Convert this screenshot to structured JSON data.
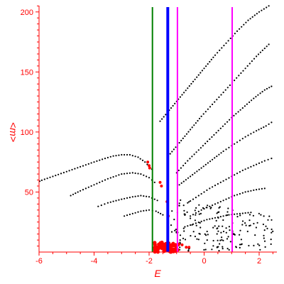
{
  "chart_data": {
    "type": "scatter",
    "title": "",
    "xlabel": "E",
    "ylabel": "<m>",
    "xlim": [
      -6.0,
      2.6
    ],
    "ylim": [
      0,
      205
    ],
    "x_ticks": [
      -6,
      -4,
      -2,
      0,
      2
    ],
    "x_tick_labels": [
      "-6",
      "-4",
      "-2",
      "0",
      "2"
    ],
    "y_ticks": [
      50,
      100,
      150,
      200
    ],
    "y_tick_labels": [
      "50",
      "100",
      "150",
      "200"
    ],
    "grid": false,
    "colors": {
      "axes": "#ff0000",
      "points": "#000000",
      "highlight": "#ff0000",
      "line_green": "#008000",
      "line_blue": "#0000ff",
      "line_magenta": "#ff00ff"
    },
    "vertical_lines": [
      {
        "x": -1.88,
        "color": "#008000",
        "width": 2
      },
      {
        "x": -1.32,
        "color": "#0000ff",
        "width": 4
      },
      {
        "x": -0.97,
        "color": "#ff00ff",
        "width": 2
      },
      {
        "x": 1.02,
        "color": "#ff00ff",
        "width": 2
      }
    ],
    "series": [
      {
        "points": [
          [
            -6.0,
            59
          ],
          [
            -5.5,
            63
          ],
          [
            -5.0,
            67
          ],
          [
            -4.5,
            71
          ],
          [
            -4.0,
            75
          ],
          [
            -3.6,
            78
          ],
          [
            -3.3,
            80
          ],
          [
            -3.0,
            81
          ],
          [
            -2.7,
            81
          ],
          [
            -2.4,
            79
          ],
          [
            -2.15,
            75
          ],
          [
            -1.9,
            69
          ]
        ]
      },
      {
        "points": [
          [
            -4.85,
            47
          ],
          [
            -4.5,
            51
          ],
          [
            -4.0,
            56
          ],
          [
            -3.5,
            61
          ],
          [
            -3.0,
            65
          ],
          [
            -2.6,
            66
          ],
          [
            -2.3,
            65
          ],
          [
            -2.0,
            62
          ],
          [
            -1.8,
            58
          ]
        ]
      },
      {
        "points": [
          [
            -3.85,
            38
          ],
          [
            -3.5,
            41
          ],
          [
            -3.0,
            44
          ],
          [
            -2.6,
            46
          ],
          [
            -2.3,
            47
          ],
          [
            -2.0,
            46
          ],
          [
            -1.7,
            43
          ]
        ]
      },
      {
        "points": [
          [
            -2.9,
            30
          ],
          [
            -2.6,
            32
          ],
          [
            -2.3,
            34
          ],
          [
            -2.0,
            35
          ],
          [
            -1.75,
            34
          ],
          [
            -1.5,
            31
          ]
        ]
      },
      {
        "points": [
          [
            -1.6,
            109
          ],
          [
            -1.2,
            120
          ],
          [
            -0.8,
            131
          ],
          [
            -0.4,
            142
          ],
          [
            0.0,
            153
          ],
          [
            0.4,
            164
          ],
          [
            0.8,
            174
          ],
          [
            1.2,
            184
          ],
          [
            1.6,
            193
          ],
          [
            2.0,
            200
          ],
          [
            2.35,
            205
          ]
        ]
      },
      {
        "points": [
          [
            -1.3,
            80
          ],
          [
            -0.9,
            91
          ],
          [
            -0.5,
            102
          ],
          [
            -0.1,
            113
          ],
          [
            0.3,
            123
          ],
          [
            0.7,
            133
          ],
          [
            1.1,
            143
          ],
          [
            1.5,
            153
          ],
          [
            1.9,
            163
          ],
          [
            2.35,
            173
          ]
        ]
      },
      {
        "points": [
          [
            -1.0,
            66
          ],
          [
            -0.6,
            76
          ],
          [
            -0.2,
            85
          ],
          [
            0.2,
            94
          ],
          [
            0.6,
            103
          ],
          [
            1.0,
            112
          ],
          [
            1.4,
            120
          ],
          [
            1.8,
            128
          ],
          [
            2.2,
            135
          ],
          [
            2.45,
            138
          ]
        ]
      },
      {
        "points": [
          [
            -0.9,
            56
          ],
          [
            -0.5,
            63
          ],
          [
            -0.1,
            70
          ],
          [
            0.3,
            77
          ],
          [
            0.7,
            84
          ],
          [
            1.1,
            90
          ],
          [
            1.5,
            96
          ],
          [
            1.9,
            101
          ],
          [
            2.25,
            105
          ],
          [
            2.45,
            108
          ]
        ]
      },
      {
        "points": [
          [
            -0.6,
            41
          ],
          [
            -0.2,
            47
          ],
          [
            0.2,
            53
          ],
          [
            0.6,
            58
          ],
          [
            1.0,
            63
          ],
          [
            1.4,
            68
          ],
          [
            1.8,
            72
          ],
          [
            2.2,
            76
          ],
          [
            2.45,
            78
          ]
        ]
      },
      {
        "points": [
          [
            -0.5,
            30
          ],
          [
            -0.1,
            35
          ],
          [
            0.3,
            39
          ],
          [
            0.7,
            43
          ],
          [
            1.1,
            47
          ],
          [
            1.5,
            50
          ],
          [
            1.9,
            52
          ],
          [
            2.2,
            53
          ]
        ]
      },
      {
        "points": [
          [
            -0.7,
            21
          ],
          [
            -0.3,
            24
          ],
          [
            0.1,
            27
          ],
          [
            0.5,
            29
          ],
          [
            0.9,
            31
          ],
          [
            1.3,
            32
          ],
          [
            1.7,
            33
          ]
        ]
      }
    ],
    "scatter_cloud": {
      "x_range": [
        -1.2,
        2.6
      ],
      "y_range": [
        1,
        45
      ],
      "count": 170
    },
    "highlight_points": [
      [
        -2.05,
        75
      ],
      [
        -2.0,
        72
      ],
      [
        -1.98,
        70
      ],
      [
        -1.6,
        58
      ],
      [
        -1.55,
        55
      ],
      [
        -1.35,
        42
      ],
      [
        -1.3,
        30
      ],
      [
        -0.8,
        6
      ],
      [
        -0.65,
        4
      ],
      [
        -0.55,
        4
      ]
    ],
    "highlight_blob": {
      "x_range": [
        -1.8,
        -0.9
      ],
      "y_range": [
        0,
        8
      ]
    }
  }
}
